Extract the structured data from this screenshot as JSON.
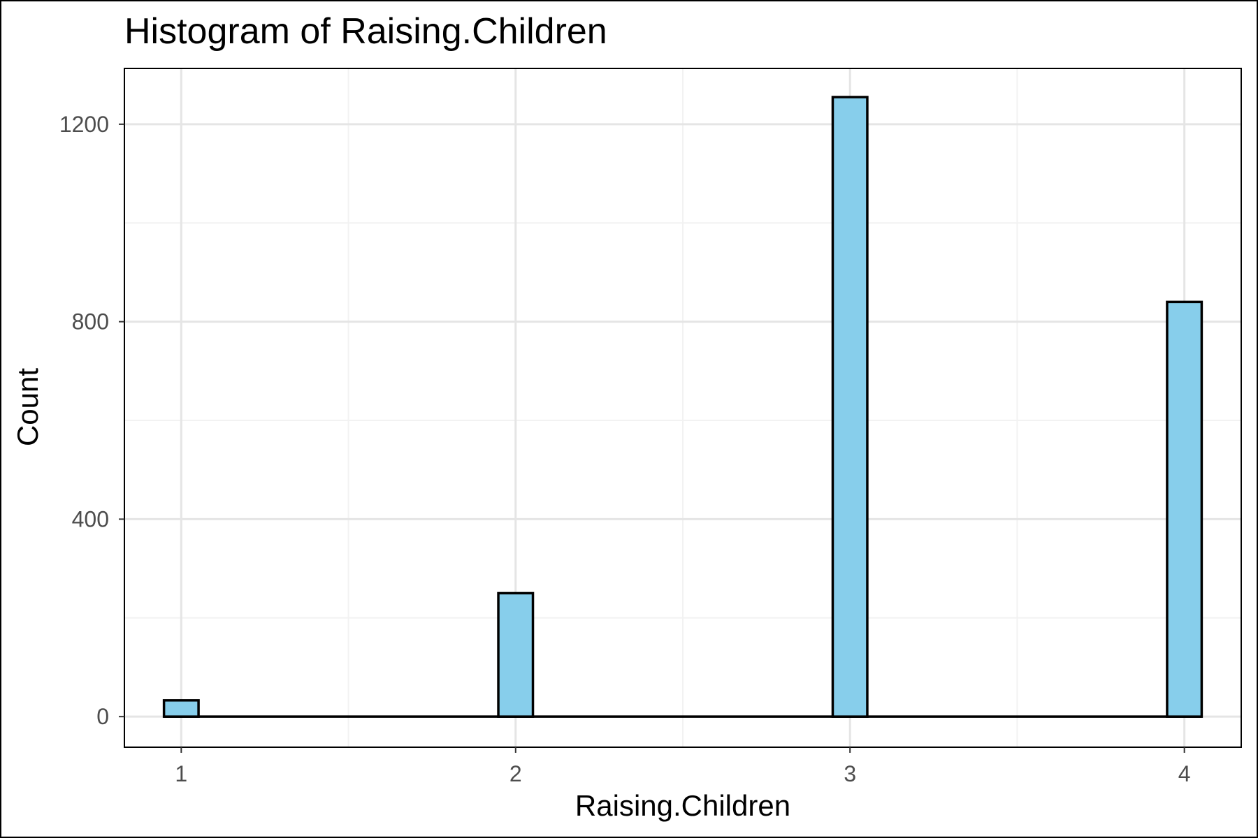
{
  "chart_data": {
    "type": "bar",
    "title": "Histogram of Raising.Children",
    "xlabel": "Raising.Children",
    "ylabel": "Count",
    "xlim": [
      0.83,
      4.17
    ],
    "ylim": [
      -62,
      1313
    ],
    "x_ticks": [
      1,
      2,
      3,
      4
    ],
    "y_ticks": [
      0,
      400,
      800,
      1200
    ],
    "bin_width": 0.1034,
    "bins": [
      {
        "x": 1,
        "count": 33
      },
      {
        "x": 2,
        "count": 250
      },
      {
        "x": 3,
        "count": 1255
      },
      {
        "x": 4,
        "count": 840
      }
    ],
    "colors": {
      "fill": "#87CEEB",
      "outline": "#000000",
      "grid_major": "#e5e5e5",
      "grid_minor": "#f2f2f2",
      "panel_border": "#000000",
      "tick_text": "#4d4d4d"
    },
    "grid": true,
    "legend": "none"
  }
}
